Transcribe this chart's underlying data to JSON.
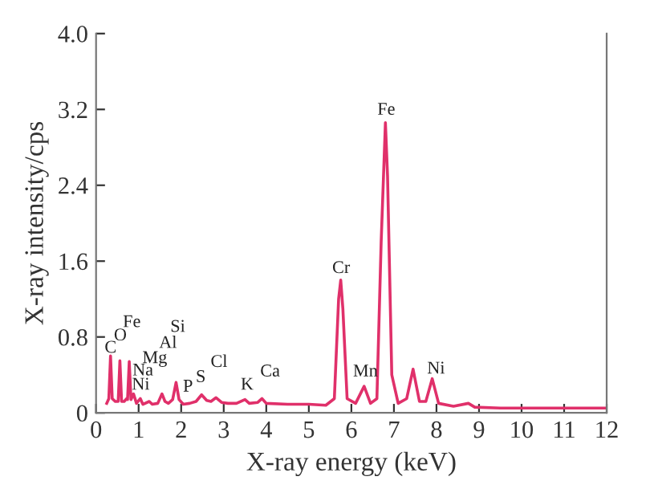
{
  "chart_data": {
    "type": "line",
    "xlabel": "X-ray energy (keV)",
    "ylabel": "X-ray intensity/cps",
    "series": [
      {
        "color": "#e0306a",
        "x": [
          0.25,
          0.3,
          0.34,
          0.38,
          0.45,
          0.52,
          0.56,
          0.6,
          0.66,
          0.72,
          0.74,
          0.78,
          0.82,
          0.88,
          0.95,
          1.04,
          1.1,
          1.25,
          1.32,
          1.45,
          1.55,
          1.62,
          1.7,
          1.8,
          1.88,
          1.95,
          2.05,
          2.2,
          2.35,
          2.48,
          2.6,
          2.7,
          2.82,
          2.95,
          3.1,
          3.3,
          3.5,
          3.6,
          3.8,
          3.9,
          4.0,
          4.5,
          5.0,
          5.4,
          5.6,
          5.7,
          5.75,
          5.8,
          5.9,
          6.1,
          6.3,
          6.45,
          6.6,
          6.7,
          6.8,
          6.85,
          6.95,
          7.1,
          7.3,
          7.45,
          7.6,
          7.75,
          7.9,
          8.05,
          8.4,
          8.75,
          8.9,
          9.5,
          10,
          11,
          12
        ],
        "values": [
          0.1,
          0.15,
          0.6,
          0.15,
          0.12,
          0.12,
          0.55,
          0.12,
          0.12,
          0.15,
          0.14,
          0.54,
          0.14,
          0.2,
          0.1,
          0.15,
          0.09,
          0.12,
          0.09,
          0.1,
          0.2,
          0.12,
          0.1,
          0.14,
          0.32,
          0.14,
          0.09,
          0.1,
          0.12,
          0.19,
          0.13,
          0.12,
          0.16,
          0.11,
          0.1,
          0.1,
          0.14,
          0.1,
          0.11,
          0.15,
          0.1,
          0.09,
          0.09,
          0.08,
          0.15,
          1.2,
          1.4,
          1.1,
          0.15,
          0.1,
          0.28,
          0.1,
          0.15,
          1.8,
          3.06,
          2.5,
          0.4,
          0.1,
          0.15,
          0.46,
          0.12,
          0.12,
          0.36,
          0.1,
          0.07,
          0.1,
          0.06,
          0.05,
          0.05,
          0.05,
          0.05
        ]
      }
    ],
    "xlim": [
      0,
      12
    ],
    "xticks": [
      0,
      1,
      2,
      3,
      4,
      5,
      6,
      7,
      8,
      9,
      10,
      11,
      12
    ],
    "ylim": [
      0,
      4
    ],
    "yticks": [
      0,
      0.8,
      1.6,
      2.4,
      3.2,
      {
        "value": 4,
        "label": "4.0"
      }
    ],
    "grid": false,
    "annotations": [
      "C",
      "O",
      "Fe",
      "Na",
      "Ni",
      "Mg",
      "Al",
      "Si",
      "P",
      "S",
      "Cl",
      "K",
      "Ca",
      "Cr",
      "Mn",
      "Fe",
      "Ni"
    ]
  }
}
